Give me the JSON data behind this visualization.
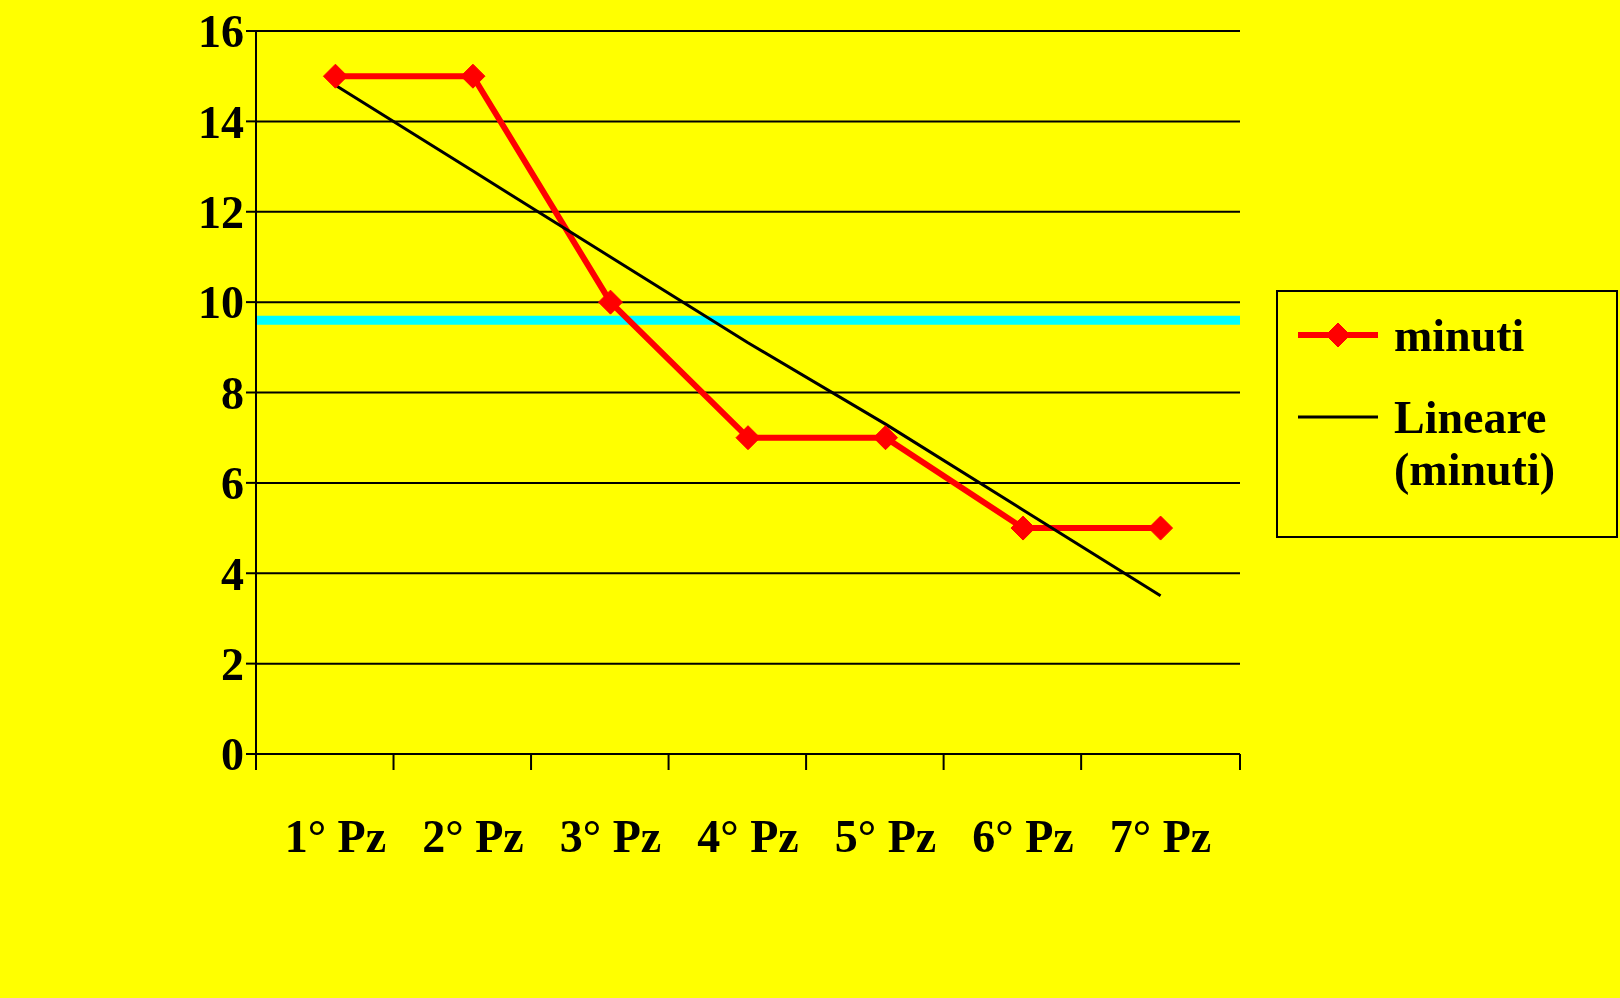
{
  "chart_data": {
    "type": "line",
    "categories": [
      "1° Pz",
      "2° Pz",
      "3° Pz",
      "4° Pz",
      "5° Pz",
      "6° Pz",
      "7° Pz"
    ],
    "series": [
      {
        "name": "minuti",
        "color": "#ff0000",
        "marker": "diamond",
        "values": [
          15,
          15,
          10,
          7,
          7,
          5,
          5
        ]
      },
      {
        "name": "Lineare (minuti)",
        "color": "#000000",
        "marker": "none",
        "values": [
          14.8,
          12.9,
          11.0,
          9.1,
          7.3,
          5.4,
          3.5
        ]
      }
    ],
    "ylim": [
      0,
      16
    ],
    "yticks": [
      0,
      2,
      4,
      6,
      8,
      10,
      12,
      14,
      16
    ],
    "grid": "y",
    "legend": "right",
    "ref_lines": [
      {
        "axis": "y",
        "value": 9.6,
        "color": "#00ffff"
      }
    ]
  }
}
